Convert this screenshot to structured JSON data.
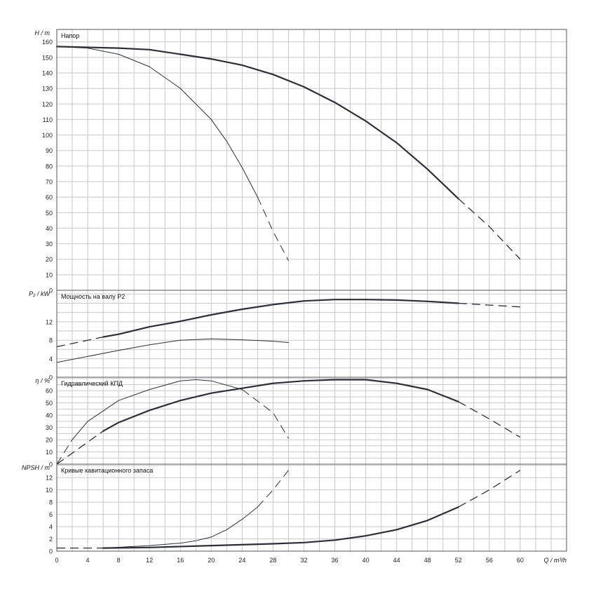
{
  "chart_data": {
    "type": "line",
    "x_axis": {
      "label_name": "Q",
      "label_unit": "m³/h",
      "range": [
        0,
        66
      ],
      "ticks": [
        0,
        4,
        8,
        12,
        16,
        20,
        24,
        28,
        32,
        36,
        40,
        44,
        48,
        52,
        56,
        60
      ],
      "grid_step": 2
    },
    "panels": [
      {
        "key": "head",
        "title": "Напор",
        "ylabel_name": "H",
        "ylabel_unit": "m",
        "ylim": [
          0,
          168
        ],
        "ticks": [
          0,
          10,
          20,
          30,
          40,
          50,
          60,
          70,
          80,
          90,
          100,
          110,
          120,
          130,
          140,
          150,
          160
        ],
        "grid_step": 10,
        "series": [
          {
            "weight": "thick",
            "solid": [
              [
                0,
                157
              ],
              [
                8,
                156
              ],
              [
                12,
                155
              ],
              [
                16,
                152
              ],
              [
                20,
                149
              ],
              [
                24,
                145
              ],
              [
                28,
                139
              ],
              [
                32,
                131
              ],
              [
                36,
                121
              ],
              [
                40,
                109
              ],
              [
                44,
                95
              ],
              [
                48,
                78
              ],
              [
                52,
                59
              ]
            ],
            "dashed_start": [],
            "dashed_end": [
              [
                52,
                59
              ],
              [
                56,
                41
              ],
              [
                60,
                20
              ]
            ]
          },
          {
            "weight": "thin",
            "solid": [
              [
                0,
                157
              ],
              [
                4,
                156
              ],
              [
                8,
                152
              ],
              [
                12,
                144
              ],
              [
                16,
                130
              ],
              [
                20,
                110
              ],
              [
                22,
                96
              ],
              [
                24,
                79
              ],
              [
                26,
                60
              ]
            ],
            "dashed_start": [],
            "dashed_end": [
              [
                26,
                60
              ],
              [
                28,
                38
              ],
              [
                30,
                19
              ]
            ]
          }
        ]
      },
      {
        "key": "power",
        "title": "Мощность на валу P2",
        "ylabel_name": "P₂",
        "ylabel_unit": "kW",
        "ylim": [
          0,
          18.8
        ],
        "ticks": [
          0,
          4,
          8,
          12
        ],
        "grid_step": 2,
        "series": [
          {
            "weight": "thick",
            "solid": [
              [
                6,
                8.7
              ],
              [
                8,
                9.3
              ],
              [
                12,
                10.9
              ],
              [
                16,
                12.1
              ],
              [
                20,
                13.5
              ],
              [
                24,
                14.7
              ],
              [
                28,
                15.7
              ],
              [
                32,
                16.5
              ],
              [
                36,
                16.8
              ],
              [
                40,
                16.8
              ],
              [
                44,
                16.7
              ],
              [
                48,
                16.4
              ],
              [
                52,
                16.0
              ]
            ],
            "dashed_start": [
              [
                0,
                6.6
              ],
              [
                6,
                8.7
              ]
            ],
            "dashed_end": [
              [
                52,
                16.0
              ],
              [
                56,
                15.6
              ],
              [
                60,
                15.2
              ]
            ]
          },
          {
            "weight": "thin",
            "solid": [
              [
                0,
                3.2
              ],
              [
                4,
                4.5
              ],
              [
                8,
                5.8
              ],
              [
                12,
                7.0
              ],
              [
                16,
                8.0
              ],
              [
                20,
                8.3
              ],
              [
                24,
                8.1
              ],
              [
                28,
                7.8
              ],
              [
                30,
                7.5
              ]
            ],
            "dashed_start": [],
            "dashed_end": []
          }
        ]
      },
      {
        "key": "efficiency",
        "title": "Гидравлический КПД",
        "ylabel_name": "η",
        "ylabel_unit": "%",
        "ylim": [
          0,
          71
        ],
        "ticks": [
          0,
          10,
          20,
          30,
          40,
          50,
          60
        ],
        "grid_step": 5,
        "series": [
          {
            "weight": "thick",
            "solid": [
              [
                6,
                27
              ],
              [
                8,
                34
              ],
              [
                12,
                44
              ],
              [
                16,
                52
              ],
              [
                20,
                58
              ],
              [
                24,
                62
              ],
              [
                28,
                66
              ],
              [
                32,
                68
              ],
              [
                36,
                69
              ],
              [
                40,
                69
              ],
              [
                44,
                66
              ],
              [
                48,
                61
              ],
              [
                52,
                51
              ]
            ],
            "dashed_start": [
              [
                0,
                0
              ],
              [
                6,
                27
              ]
            ],
            "dashed_end": [
              [
                52,
                51
              ],
              [
                56,
                37
              ],
              [
                60,
                22
              ]
            ]
          },
          {
            "weight": "thin",
            "solid": [
              [
                2,
                20
              ],
              [
                4,
                35
              ],
              [
                8,
                52
              ],
              [
                12,
                61
              ],
              [
                16,
                68
              ],
              [
                18,
                69
              ],
              [
                20,
                68
              ],
              [
                24,
                61
              ]
            ],
            "dashed_start": [
              [
                0,
                0
              ],
              [
                2,
                20
              ]
            ],
            "dashed_end": [
              [
                24,
                61
              ],
              [
                28,
                42
              ],
              [
                30,
                21
              ]
            ]
          }
        ]
      },
      {
        "key": "npsh",
        "title": "Кривые кавитационного запаса",
        "ylabel_name": "NPSH",
        "ylabel_unit": "m",
        "ylim": [
          0,
          14.2
        ],
        "ticks": [
          0,
          2,
          4,
          6,
          8,
          10,
          12
        ],
        "grid_step": 2,
        "series": [
          {
            "weight": "thick",
            "solid": [
              [
                6,
                0.5
              ],
              [
                12,
                0.6
              ],
              [
                20,
                0.9
              ],
              [
                28,
                1.2
              ],
              [
                32,
                1.4
              ],
              [
                36,
                1.8
              ],
              [
                40,
                2.5
              ],
              [
                44,
                3.5
              ],
              [
                48,
                5.0
              ],
              [
                52,
                7.2
              ]
            ],
            "dashed_start": [
              [
                0,
                0.5
              ],
              [
                6,
                0.5
              ]
            ],
            "dashed_end": [
              [
                52,
                7.2
              ],
              [
                56,
                10.0
              ],
              [
                60,
                13.2
              ]
            ]
          },
          {
            "weight": "thin",
            "solid": [
              [
                6,
                0.5
              ],
              [
                12,
                0.9
              ],
              [
                16,
                1.3
              ],
              [
                18,
                1.7
              ],
              [
                20,
                2.3
              ],
              [
                22,
                3.5
              ],
              [
                24,
                5.2
              ],
              [
                26,
                7.2
              ]
            ],
            "dashed_start": [],
            "dashed_end": [
              [
                26,
                7.2
              ],
              [
                28,
                10.0
              ],
              [
                30,
                13.2
              ]
            ]
          }
        ]
      }
    ]
  },
  "colors": {
    "curve": "#2b2f3d",
    "grid": "#c8c8c8",
    "frame": "#555555",
    "text": "#111111"
  }
}
